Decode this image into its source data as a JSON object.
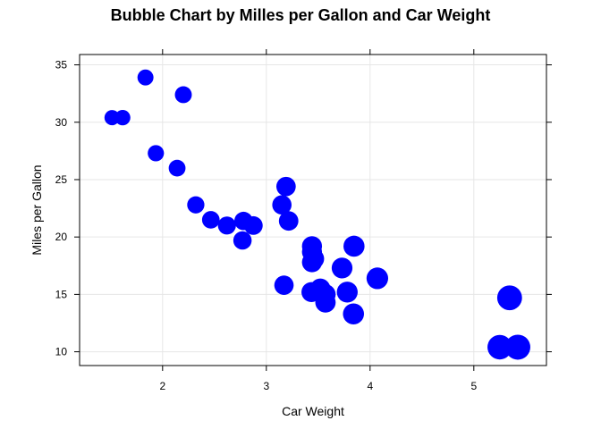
{
  "chart_data": {
    "type": "scatter",
    "title": "Bubble Chart by Milles per Gallon and  Car Weight",
    "xlabel": "Car Weight",
    "ylabel": "Miles per Gallon",
    "xlim": [
      1.2,
      5.7
    ],
    "ylim": [
      8.8,
      35.9
    ],
    "xticks": [
      2,
      3,
      4,
      5
    ],
    "yticks": [
      10,
      15,
      20,
      25,
      30,
      35
    ],
    "grid": true,
    "bubble_color": "#0000ff",
    "bubble_size_encodes": "Car Weight",
    "points": [
      {
        "x": 2.62,
        "y": 21.0
      },
      {
        "x": 2.875,
        "y": 21.0
      },
      {
        "x": 2.32,
        "y": 22.8
      },
      {
        "x": 3.215,
        "y": 21.4
      },
      {
        "x": 3.44,
        "y": 18.7
      },
      {
        "x": 3.46,
        "y": 18.1
      },
      {
        "x": 3.57,
        "y": 14.3
      },
      {
        "x": 3.19,
        "y": 24.4
      },
      {
        "x": 3.15,
        "y": 22.8
      },
      {
        "x": 3.44,
        "y": 19.2
      },
      {
        "x": 3.44,
        "y": 17.8
      },
      {
        "x": 4.07,
        "y": 16.4
      },
      {
        "x": 3.73,
        "y": 17.3
      },
      {
        "x": 3.78,
        "y": 15.2
      },
      {
        "x": 5.25,
        "y": 10.4
      },
      {
        "x": 5.424,
        "y": 10.4
      },
      {
        "x": 5.345,
        "y": 14.7
      },
      {
        "x": 2.2,
        "y": 32.4
      },
      {
        "x": 1.615,
        "y": 30.4
      },
      {
        "x": 1.835,
        "y": 33.9
      },
      {
        "x": 2.465,
        "y": 21.5
      },
      {
        "x": 3.52,
        "y": 15.5
      },
      {
        "x": 3.435,
        "y": 15.2
      },
      {
        "x": 3.84,
        "y": 13.3
      },
      {
        "x": 3.845,
        "y": 19.2
      },
      {
        "x": 1.935,
        "y": 27.3
      },
      {
        "x": 2.14,
        "y": 26.0
      },
      {
        "x": 1.513,
        "y": 30.4
      },
      {
        "x": 3.17,
        "y": 15.8
      },
      {
        "x": 2.77,
        "y": 19.7
      },
      {
        "x": 3.57,
        "y": 15.0
      },
      {
        "x": 2.78,
        "y": 21.4
      }
    ]
  }
}
